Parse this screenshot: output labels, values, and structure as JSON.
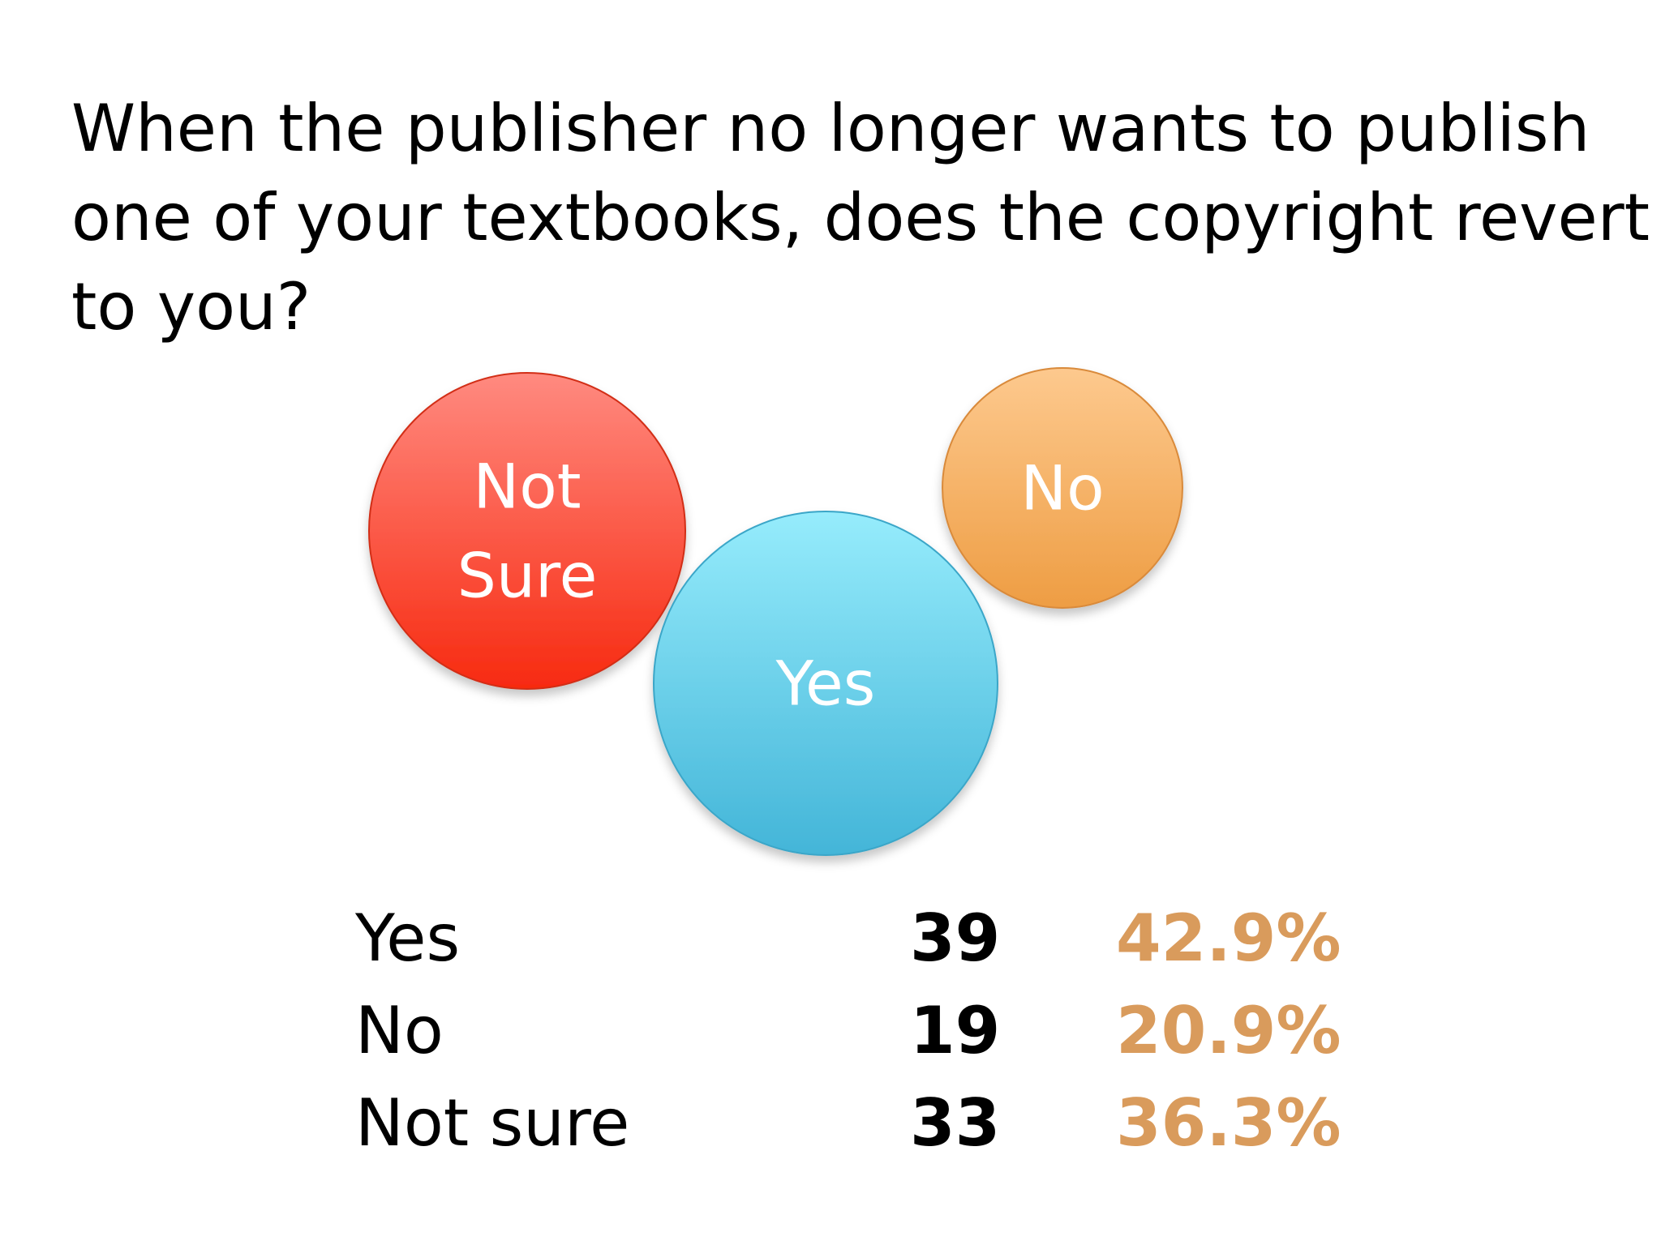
{
  "title_lines": [
    "When the publisher no longer wants to publish",
    "one of your textbooks, does the copyright revert",
    "to you?"
  ],
  "colors": {
    "yes": "#5cc8e6",
    "no": "#f0a85a",
    "not_sure": "#f5533c",
    "percent_text": "#d99b5c"
  },
  "chart_data": {
    "type": "bubble",
    "title": "When the publisher no longer wants to publish one of your textbooks, does the copyright revert to you?",
    "categories": [
      "Yes",
      "No",
      "Not sure"
    ],
    "bubble_labels": [
      "Yes",
      "No",
      "Not\nSure"
    ],
    "counts": [
      39,
      19,
      33
    ],
    "percentages": [
      "42.9%",
      "20.9%",
      "36.3%"
    ]
  },
  "table": {
    "rows": [
      {
        "label": "Yes",
        "count": "39",
        "percent": "42.9%"
      },
      {
        "label": "No",
        "count": "19",
        "percent": "20.9%"
      },
      {
        "label": "Not sure",
        "count": "33",
        "percent": "36.3%"
      }
    ]
  }
}
